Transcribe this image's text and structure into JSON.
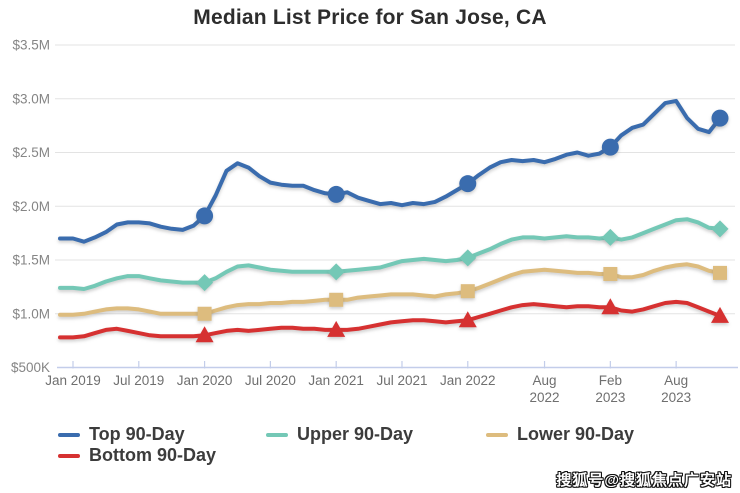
{
  "title": "Median List Price for San Jose, CA",
  "watermark": "搜狐号@搜狐焦点广安站",
  "chart_data": {
    "type": "line",
    "title": "Median List Price for San Jose, CA",
    "value_unit": "USD millions",
    "x_axis": {
      "start": "Jan 2019",
      "end": "Dec 2023",
      "interval": "monthly",
      "ticks": [
        {
          "label": "Jan 2019",
          "index": 0,
          "two_line": false
        },
        {
          "label": "Jul 2019",
          "index": 6,
          "two_line": false
        },
        {
          "label": "Jan 2020",
          "index": 12,
          "two_line": false
        },
        {
          "label": "Jul 2020",
          "index": 18,
          "two_line": false
        },
        {
          "label": "Jan 2021",
          "index": 24,
          "two_line": false
        },
        {
          "label": "Jul 2021",
          "index": 30,
          "two_line": false
        },
        {
          "label": "Jan 2022",
          "index": 36,
          "two_line": false
        },
        {
          "label": "Aug 2022",
          "index": 43,
          "two_line": true
        },
        {
          "label": "Feb 2023",
          "index": 49,
          "two_line": true
        },
        {
          "label": "Aug 2023",
          "index": 55,
          "two_line": true
        }
      ]
    },
    "y_axis": {
      "labels": [
        "$3.5M",
        "$3.0M",
        "$2.5M",
        "$2.0M",
        "$1.5M",
        "$1.0M",
        "$500K"
      ],
      "values": [
        3.5,
        3.0,
        2.5,
        2.0,
        1.5,
        1.0,
        0.5
      ],
      "range": [
        0.5,
        3.5
      ],
      "grid": true
    },
    "legend_position": "bottom",
    "series": [
      {
        "name": "Top 90-Day",
        "color": "#3a6cae",
        "marker": "circle",
        "marker_indices": [
          12,
          24,
          36,
          49,
          59
        ],
        "values": [
          1.7,
          1.67,
          1.71,
          1.76,
          1.83,
          1.85,
          1.85,
          1.84,
          1.81,
          1.79,
          1.78,
          1.82,
          1.91,
          2.1,
          2.33,
          2.4,
          2.36,
          2.28,
          2.22,
          2.2,
          2.19,
          2.19,
          2.15,
          2.12,
          2.11,
          2.13,
          2.08,
          2.05,
          2.02,
          2.03,
          2.01,
          2.03,
          2.02,
          2.04,
          2.09,
          2.15,
          2.21,
          2.29,
          2.36,
          2.41,
          2.43,
          2.42,
          2.43,
          2.41,
          2.44,
          2.48,
          2.5,
          2.47,
          2.49,
          2.55,
          2.66,
          2.73,
          2.76,
          2.86,
          2.96,
          2.98,
          2.82,
          2.72,
          2.69,
          2.82
        ]
      },
      {
        "name": "Upper 90-Day",
        "color": "#74c8b6",
        "marker": "diamond",
        "marker_indices": [
          12,
          24,
          36,
          49,
          59
        ],
        "values": [
          1.24,
          1.23,
          1.26,
          1.3,
          1.33,
          1.35,
          1.35,
          1.33,
          1.31,
          1.3,
          1.29,
          1.29,
          1.29,
          1.33,
          1.39,
          1.44,
          1.45,
          1.43,
          1.41,
          1.4,
          1.39,
          1.39,
          1.39,
          1.39,
          1.39,
          1.4,
          1.41,
          1.42,
          1.43,
          1.46,
          1.49,
          1.5,
          1.51,
          1.5,
          1.49,
          1.5,
          1.52,
          1.56,
          1.6,
          1.65,
          1.69,
          1.71,
          1.71,
          1.7,
          1.71,
          1.72,
          1.71,
          1.71,
          1.7,
          1.71,
          1.69,
          1.71,
          1.75,
          1.79,
          1.83,
          1.87,
          1.88,
          1.85,
          1.8,
          1.79
        ]
      },
      {
        "name": "Lower 90-Day",
        "color": "#ddbc7e",
        "marker": "square",
        "marker_indices": [
          12,
          24,
          36,
          49,
          59
        ],
        "values": [
          0.99,
          1.0,
          1.02,
          1.04,
          1.05,
          1.05,
          1.04,
          1.02,
          1.0,
          1.0,
          1.0,
          1.0,
          1.0,
          1.03,
          1.06,
          1.08,
          1.09,
          1.09,
          1.1,
          1.1,
          1.11,
          1.11,
          1.12,
          1.13,
          1.13,
          1.13,
          1.15,
          1.16,
          1.17,
          1.18,
          1.18,
          1.18,
          1.17,
          1.16,
          1.18,
          1.19,
          1.21,
          1.24,
          1.28,
          1.32,
          1.36,
          1.39,
          1.4,
          1.41,
          1.4,
          1.39,
          1.38,
          1.38,
          1.37,
          1.37,
          1.34,
          1.34,
          1.36,
          1.4,
          1.43,
          1.45,
          1.46,
          1.44,
          1.4,
          1.38
        ]
      },
      {
        "name": "Bottom 90-Day",
        "color": "#d63131",
        "marker": "triangle",
        "marker_indices": [
          12,
          24,
          36,
          49,
          59
        ],
        "values": [
          0.78,
          0.79,
          0.82,
          0.85,
          0.86,
          0.84,
          0.82,
          0.8,
          0.79,
          0.79,
          0.79,
          0.79,
          0.8,
          0.82,
          0.84,
          0.85,
          0.84,
          0.85,
          0.86,
          0.87,
          0.87,
          0.86,
          0.86,
          0.85,
          0.85,
          0.85,
          0.86,
          0.88,
          0.9,
          0.92,
          0.93,
          0.94,
          0.94,
          0.93,
          0.92,
          0.93,
          0.94,
          0.97,
          1.0,
          1.03,
          1.06,
          1.08,
          1.09,
          1.08,
          1.07,
          1.06,
          1.07,
          1.07,
          1.06,
          1.06,
          1.03,
          1.02,
          1.04,
          1.07,
          1.1,
          1.11,
          1.1,
          1.06,
          1.02,
          0.98
        ]
      }
    ],
    "colors": {
      "background": "#ffffff",
      "grid": "#e3e3e3",
      "axis": "#c3cdea",
      "title": "#2d2d2d",
      "y_label": "#858585",
      "x_label": "#6f6f6f",
      "legend_text": "#3c3c3c"
    }
  }
}
